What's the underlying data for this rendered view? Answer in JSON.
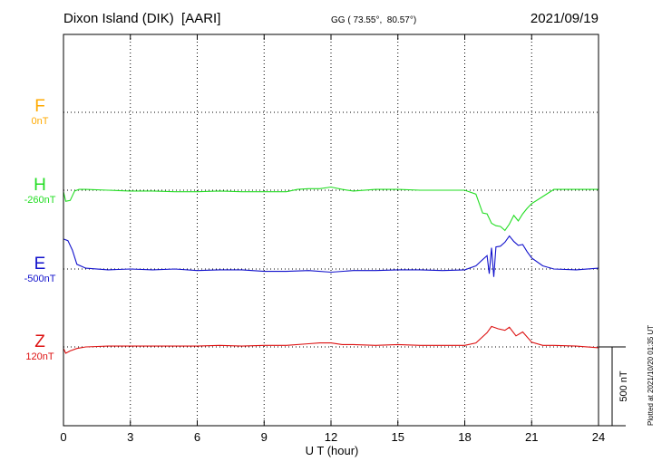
{
  "header": {
    "station": "Dixon Island (DIK)  [AARI]",
    "coords": "GG ( 73.55°,  80.57°)",
    "date": "2021/09/19"
  },
  "footer_note": "Plotted at 2021/10/20 01:35 UT",
  "colors": {
    "F": "#ffaa00",
    "H": "#22dd22",
    "E": "#1111cc",
    "Z": "#dd1111"
  },
  "chart_data": {
    "type": "line",
    "title": "Dixon Island (DIK)  [AARI]",
    "xlabel": "U T (hour)",
    "xlim": [
      0,
      24
    ],
    "xticks": [
      "0",
      "3",
      "6",
      "9",
      "12",
      "15",
      "18",
      "21",
      "24"
    ],
    "grid": true,
    "scale_bar_label": "500 nT",
    "scale_bar_nT": 500,
    "channels": [
      {
        "name": "F",
        "baseline": "0nT",
        "values": []
      },
      {
        "name": "H",
        "baseline": "-260nT",
        "x": [
          0,
          0.1,
          0.3,
          0.5,
          0.7,
          1,
          2,
          3,
          4,
          5,
          6,
          7,
          8,
          9,
          10,
          10.5,
          11,
          11.5,
          12,
          12.5,
          13,
          14,
          15,
          16,
          17,
          18,
          18.5,
          18.8,
          19,
          19.2,
          19.4,
          19.6,
          19.8,
          20,
          20.2,
          20.4,
          20.6,
          20.8,
          21,
          21.5,
          22,
          23,
          24
        ],
        "values": [
          -10,
          -70,
          -65,
          -5,
          5,
          5,
          0,
          -5,
          -5,
          -10,
          -10,
          -5,
          -10,
          -10,
          -10,
          5,
          10,
          10,
          20,
          5,
          -5,
          5,
          5,
          0,
          0,
          0,
          -25,
          -145,
          -150,
          -210,
          -225,
          -230,
          -255,
          -215,
          -160,
          -195,
          -150,
          -115,
          -85,
          -40,
          5,
          5,
          5
        ]
      },
      {
        "name": "E",
        "baseline": "-500nT",
        "x": [
          0,
          0.2,
          0.4,
          0.6,
          1,
          2,
          3,
          4,
          5,
          6,
          7,
          8,
          9,
          10,
          11,
          12,
          13,
          14,
          15,
          16,
          17,
          18,
          18.5,
          18.8,
          19,
          19.1,
          19.2,
          19.3,
          19.4,
          19.6,
          19.8,
          20,
          20.2,
          20.4,
          20.6,
          20.8,
          21,
          21.5,
          22,
          23,
          24
        ],
        "values": [
          190,
          180,
          120,
          30,
          5,
          -5,
          0,
          -5,
          0,
          -10,
          -5,
          -5,
          -15,
          -15,
          -10,
          -20,
          -10,
          -10,
          -5,
          -5,
          -10,
          -5,
          20,
          60,
          85,
          -30,
          135,
          -50,
          140,
          145,
          170,
          210,
          175,
          150,
          155,
          110,
          70,
          20,
          0,
          -5,
          5
        ]
      },
      {
        "name": "Z",
        "baseline": "120nT",
        "x": [
          0,
          0.1,
          0.3,
          0.6,
          1,
          2,
          3,
          4,
          5,
          6,
          7,
          8,
          9,
          10,
          11,
          11.5,
          12,
          12.5,
          13,
          14,
          15,
          16,
          17,
          18,
          18.5,
          19,
          19.2,
          19.5,
          19.8,
          20,
          20.3,
          20.6,
          21,
          21.5,
          22,
          23,
          24
        ],
        "values": [
          -10,
          -40,
          -25,
          -10,
          0,
          5,
          5,
          5,
          5,
          5,
          10,
          5,
          10,
          10,
          20,
          25,
          25,
          15,
          15,
          10,
          15,
          10,
          10,
          10,
          25,
          90,
          130,
          115,
          105,
          125,
          70,
          95,
          30,
          10,
          10,
          5,
          -5
        ]
      }
    ]
  }
}
